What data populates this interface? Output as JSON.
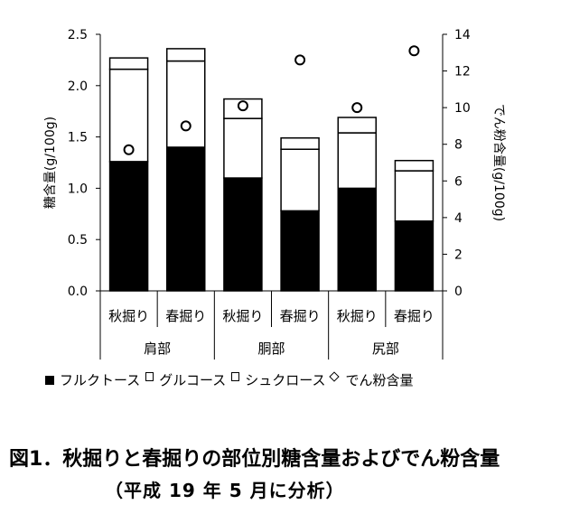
{
  "chart_data": {
    "type": "bar",
    "stacked": true,
    "y_left": {
      "label": "糖含量(g/100g)",
      "ylim": [
        0,
        2.5
      ],
      "ticks": [
        "0.0",
        "0.5",
        "1.0",
        "1.5",
        "2.0",
        "2.5"
      ]
    },
    "y_right": {
      "label": "でん粉含量(g/100g)",
      "ylim": [
        0,
        14
      ],
      "ticks": [
        "0",
        "2",
        "4",
        "6",
        "8",
        "10",
        "12",
        "14"
      ]
    },
    "categories": [
      "秋掘り",
      "春掘り",
      "秋掘り",
      "春掘り",
      "秋掘り",
      "春掘り"
    ],
    "groups": [
      {
        "label": "肩部",
        "span": [
          0,
          1
        ]
      },
      {
        "label": "胴部",
        "span": [
          2,
          3
        ]
      },
      {
        "label": "尻部",
        "span": [
          4,
          5
        ]
      }
    ],
    "series": [
      {
        "name": "フルクトース",
        "axis": "left",
        "values": [
          1.26,
          1.4,
          1.1,
          0.78,
          1.0,
          0.68
        ]
      },
      {
        "name": "グルコース",
        "axis": "left",
        "values": [
          0.9,
          0.84,
          0.58,
          0.6,
          0.54,
          0.49
        ]
      },
      {
        "name": "シュクロース",
        "axis": "left",
        "values": [
          0.11,
          0.12,
          0.19,
          0.11,
          0.15,
          0.1
        ]
      },
      {
        "name": "でん粉含量",
        "axis": "right",
        "values": [
          7.7,
          9.0,
          10.1,
          12.6,
          10.0,
          13.1
        ]
      }
    ],
    "grid": false,
    "legend_position": "bottom"
  },
  "legend": {
    "fructose": "フルクトース",
    "glucose": "グルコース",
    "sucrose": "シュクロース",
    "starch": "でん粉含量"
  },
  "caption": {
    "line1": "図1．秋掘りと春掘りの部位別糖含量およびでん粉含量",
    "line2": "（平成 19 年 5 月に分析）"
  }
}
